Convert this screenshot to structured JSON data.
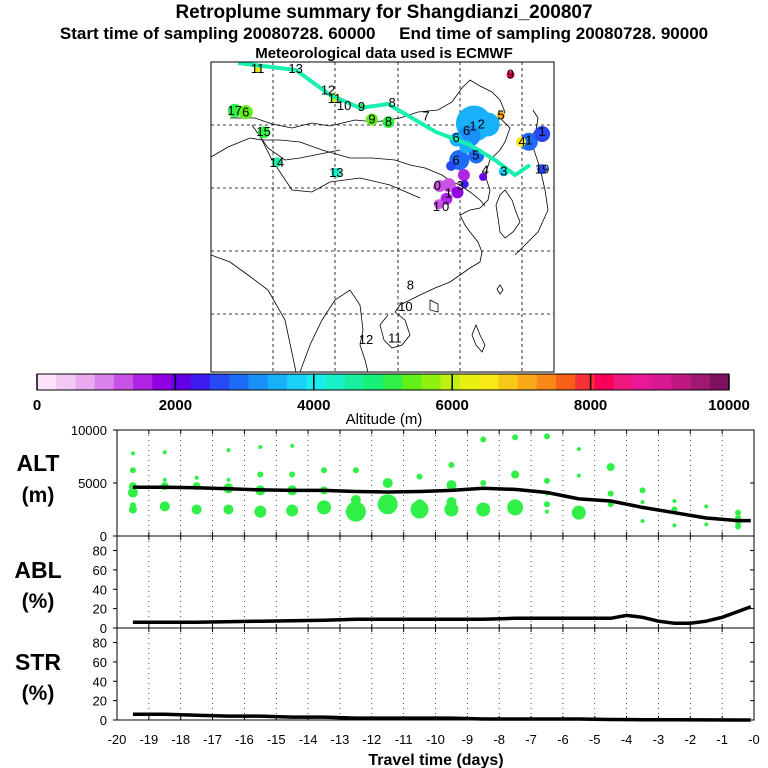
{
  "header": {
    "title": "Retroplume summary for Shangdianzi_200807",
    "start_label": "Start time of sampling 20080728. 60000",
    "end_label": "End time of sampling 20080728. 90000",
    "meteo_label": "Meteorological data used is ECMWF"
  },
  "map_labels": [
    {
      "text": "11",
      "lon": 75.2,
      "lat": 61.5
    },
    {
      "text": "13",
      "lon": 83.5,
      "lat": 61.5
    },
    {
      "text": "12",
      "lon": 90.6,
      "lat": 56.7
    },
    {
      "text": "11",
      "lon": 92.0,
      "lat": 54.9
    },
    {
      "text": "10",
      "lon": 94.1,
      "lat": 53.4
    },
    {
      "text": "9",
      "lon": 97.9,
      "lat": 53.1
    },
    {
      "text": "8",
      "lon": 104.6,
      "lat": 54.0
    },
    {
      "text": "9",
      "lon": 100.2,
      "lat": 50.4
    },
    {
      "text": "8",
      "lon": 103.8,
      "lat": 49.8
    },
    {
      "text": "7",
      "lon": 112.0,
      "lat": 51.0
    },
    {
      "text": "17",
      "lon": 70.2,
      "lat": 52.3
    },
    {
      "text": "6",
      "lon": 72.6,
      "lat": 51.9
    },
    {
      "text": "15",
      "lon": 76.5,
      "lat": 47.6
    },
    {
      "text": "14",
      "lon": 79.4,
      "lat": 40.9
    },
    {
      "text": "13",
      "lon": 92.4,
      "lat": 38.6
    },
    {
      "text": "6",
      "lon": 118.6,
      "lat": 46.3
    },
    {
      "text": "2",
      "lon": 124.1,
      "lat": 49.3
    },
    {
      "text": "1",
      "lon": 122.3,
      "lat": 48.9
    },
    {
      "text": "6",
      "lon": 120.9,
      "lat": 47.9
    },
    {
      "text": "6",
      "lon": 118.6,
      "lat": 41.4
    },
    {
      "text": "5",
      "lon": 122.9,
      "lat": 42.5
    },
    {
      "text": "4",
      "lon": 125.0,
      "lat": 39.2
    },
    {
      "text": "3",
      "lon": 129.0,
      "lat": 39.0
    },
    {
      "text": "5",
      "lon": 128.4,
      "lat": 51.3
    },
    {
      "text": "4",
      "lon": 133.0,
      "lat": 45.5
    },
    {
      "text": "1",
      "lon": 134.5,
      "lat": 45.8
    },
    {
      "text": "1",
      "lon": 137.4,
      "lat": 47.6
    },
    {
      "text": "19",
      "lon": 137.4,
      "lat": 39.4
    },
    {
      "text": "9",
      "lon": 130.5,
      "lat": 60.3
    },
    {
      "text": "0",
      "lon": 114.5,
      "lat": 35.8
    },
    {
      "text": "3",
      "lon": 119.5,
      "lat": 35.8
    },
    {
      "text": "1",
      "lon": 116.9,
      "lat": 34.2
    },
    {
      "text": "1",
      "lon": 114.3,
      "lat": 31.2
    },
    {
      "text": "0",
      "lon": 116.3,
      "lat": 31.2
    },
    {
      "text": "8",
      "lon": 108.6,
      "lat": 14.0
    },
    {
      "text": "10",
      "lon": 107.5,
      "lat": 9.3
    },
    {
      "text": "12",
      "lon": 98.9,
      "lat": 2.0
    },
    {
      "text": "11",
      "lon": 105.2,
      "lat": 2.3
    }
  ],
  "colorbar": {
    "xlabel": "Altitude (m)",
    "min": 0,
    "max": 10000,
    "ticks": [
      0,
      2000,
      4000,
      6000,
      8000,
      10000
    ],
    "colors": [
      "#fbe3fb",
      "#f3c8f3",
      "#eaaaf0",
      "#dc82ec",
      "#c853e6",
      "#b024e4",
      "#9000e0",
      "#6400e8",
      "#3c1cf0",
      "#2848f5",
      "#1c6cf8",
      "#1890f8",
      "#18b0f8",
      "#18d0f8",
      "#18ecec",
      "#18f0c8",
      "#18f0a0",
      "#18f078",
      "#30f048",
      "#60f018",
      "#90f010",
      "#c0f010",
      "#e8f010",
      "#f8e818",
      "#f8c818",
      "#f8a818",
      "#f88818",
      "#f86018",
      "#f83038",
      "#f80058",
      "#f01880",
      "#e81898",
      "#d81890",
      "#c01880",
      "#a01870",
      "#801060"
    ]
  },
  "time_axis": {
    "label": "Travel time (days)",
    "ticks": [
      "-20",
      "-19",
      "-18",
      "-17",
      "-16",
      "-15",
      "-14",
      "-13",
      "-12",
      "-11",
      "-10",
      "-9",
      "-8",
      "-7",
      "-6",
      "-5",
      "-4",
      "-3",
      "-2",
      "-1",
      "-0"
    ]
  },
  "chart_data": [
    {
      "type": "scatter",
      "title": "ALT (m)",
      "xlabel": "Travel time (days)",
      "ylabel": "ALT (m)",
      "xlim": [
        -20,
        0
      ],
      "ylim": [
        0,
        10000
      ],
      "yticks": [
        "0",
        "5000",
        "10000"
      ],
      "mean_line": {
        "x": [
          -19.5,
          -18.5,
          -17.5,
          -16.5,
          -15.5,
          -14.5,
          -13.5,
          -12.5,
          -11.5,
          -10.5,
          -9.5,
          -8.5,
          -7.5,
          -6.5,
          -5.5,
          -4.5,
          -3.5,
          -2.5,
          -1.5,
          -0.5,
          -0.1
        ],
        "y": [
          4600,
          4600,
          4550,
          4450,
          4350,
          4300,
          4300,
          4200,
          4150,
          4200,
          4300,
          4500,
          4400,
          4100,
          3500,
          3300,
          2700,
          2200,
          1700,
          1450,
          1450
        ]
      },
      "points": {
        "x": [
          -19.5,
          -19.5,
          -19.5,
          -19.5,
          -19.5,
          -19.5,
          -18.5,
          -18.5,
          -18.5,
          -18.5,
          -17.5,
          -17.5,
          -17.5,
          -16.5,
          -16.5,
          -16.5,
          -16.5,
          -15.5,
          -15.5,
          -15.5,
          -15.5,
          -14.5,
          -14.5,
          -14.5,
          -14.5,
          -13.5,
          -13.5,
          -13.5,
          -12.5,
          -12.5,
          -12.5,
          -11.5,
          -11.5,
          -10.5,
          -10.5,
          -10.5,
          -9.5,
          -9.5,
          -9.5,
          -9.5,
          -8.5,
          -8.5,
          -8.5,
          -7.5,
          -7.5,
          -7.5,
          -6.5,
          -6.5,
          -6.5,
          -6.5,
          -6.5,
          -5.5,
          -5.5,
          -5.5,
          -4.5,
          -4.5,
          -4.5,
          -3.5,
          -3.5,
          -3.5,
          -2.5,
          -2.5,
          -2.5,
          -1.5,
          -1.5,
          -0.5,
          -0.5,
          -0.5,
          -0.5
        ],
        "y": [
          7800,
          6200,
          4700,
          4100,
          2500,
          2900,
          5300,
          4700,
          2800,
          7900,
          5500,
          4700,
          2500,
          8100,
          5300,
          4500,
          2500,
          8400,
          5800,
          4300,
          2300,
          8500,
          5800,
          4300,
          2400,
          6200,
          4300,
          2700,
          6200,
          3400,
          2300,
          5000,
          3000,
          5600,
          3000,
          2500,
          6700,
          4800,
          3200,
          2500,
          9100,
          5000,
          2500,
          9300,
          5800,
          2700,
          9400,
          5200,
          4000,
          3000,
          2300,
          8200,
          5700,
          2200,
          6500,
          4000,
          3000,
          4300,
          3200,
          1400,
          3300,
          2500,
          1000,
          2800,
          1100,
          2200,
          1700,
          1300,
          900
        ],
        "r": [
          2,
          3,
          4,
          5,
          4,
          3,
          2,
          4,
          5,
          2,
          2,
          4,
          5,
          2,
          2,
          5,
          5,
          2,
          3,
          5,
          6,
          2,
          3,
          5,
          6,
          3,
          4,
          7,
          3,
          5,
          10,
          5,
          10,
          3,
          5,
          9,
          3,
          5,
          5,
          7,
          3,
          3,
          7,
          3,
          4,
          8,
          3,
          3,
          2,
          3,
          2,
          2,
          2,
          7,
          4,
          3,
          3,
          3,
          2,
          2,
          2,
          3,
          2,
          2,
          2,
          3,
          3,
          3,
          3
        ]
      }
    },
    {
      "type": "line",
      "title": "ABL (%)",
      "xlabel": "Travel time (days)",
      "ylabel": "ABL (%)",
      "xlim": [
        -20,
        0
      ],
      "ylim": [
        0,
        95
      ],
      "yticks": [
        "0",
        "20",
        "40",
        "60",
        "80"
      ],
      "x": [
        -19.5,
        -17.5,
        -15.5,
        -13.5,
        -12.5,
        -10.5,
        -8.5,
        -7.5,
        -6.5,
        -5.5,
        -4.5,
        -4.0,
        -3.5,
        -3.0,
        -2.5,
        -2.0,
        -1.5,
        -1.0,
        -0.5,
        -0.1
      ],
      "y": [
        6,
        6,
        7,
        8,
        9,
        9,
        9,
        10,
        10,
        10,
        10,
        13,
        11,
        7,
        5,
        5,
        7,
        11,
        17,
        22
      ]
    },
    {
      "type": "line",
      "title": "STR (%)",
      "xlabel": "Travel time (days)",
      "ylabel": "STR (%)",
      "xlim": [
        -20,
        0
      ],
      "ylim": [
        0,
        95
      ],
      "yticks": [
        "0",
        "20",
        "40",
        "60",
        "80"
      ],
      "x": [
        -19.5,
        -18.5,
        -17.5,
        -16.5,
        -15.5,
        -14.5,
        -13.5,
        -12.5,
        -11.5,
        -10.5,
        -9.5,
        -8.5,
        -7.5,
        -6.5,
        -5.5,
        -4.5,
        -3.5,
        -2.5,
        -1.5,
        -0.5,
        -0.1
      ],
      "y": [
        6,
        6,
        5,
        4,
        4,
        3,
        3,
        2,
        2,
        2,
        2,
        1,
        1,
        1,
        1,
        0.5,
        0.3,
        0.2,
        0.1,
        0,
        0
      ]
    }
  ]
}
